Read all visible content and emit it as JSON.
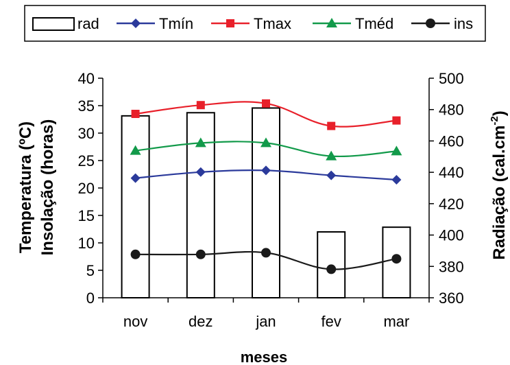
{
  "chart_data": {
    "type": "bar+line",
    "categories": [
      "nov",
      "dez",
      "jan",
      "fev",
      "mar"
    ],
    "xlabel": "meses",
    "ylabel_left_line1": "Temperatura (ºC)",
    "ylabel_left_line2": "Insolação (horas)",
    "ylabel_right": "Radiação (cal.cm",
    "ylabel_right_sup": "-2",
    "ylabel_right_end": ")",
    "ylim_left": [
      0,
      40
    ],
    "yticks_left": [
      0,
      5,
      10,
      15,
      20,
      25,
      30,
      35,
      40
    ],
    "ylim_right": [
      360,
      500
    ],
    "yticks_right": [
      360,
      380,
      400,
      420,
      440,
      460,
      480,
      500
    ],
    "legend_position": "top",
    "bars": {
      "name": "rad",
      "axis": "right",
      "values": [
        476,
        478,
        481,
        402,
        405
      ]
    },
    "series": [
      {
        "name": "Tmín",
        "color": "#2b3a9b",
        "marker": "diamond",
        "values": [
          21.8,
          22.9,
          23.2,
          22.3,
          21.5
        ]
      },
      {
        "name": "Tmax",
        "color": "#e8202a",
        "marker": "square",
        "values": [
          33.5,
          35.1,
          35.4,
          31.3,
          32.3
        ]
      },
      {
        "name": "Tméd",
        "color": "#129a4a",
        "marker": "triangle",
        "values": [
          26.8,
          28.2,
          28.2,
          25.8,
          26.7
        ]
      },
      {
        "name": "ins",
        "color": "#1a1a1a",
        "marker": "circle",
        "values": [
          7.9,
          7.9,
          8.2,
          5.2,
          7.1
        ]
      }
    ]
  }
}
